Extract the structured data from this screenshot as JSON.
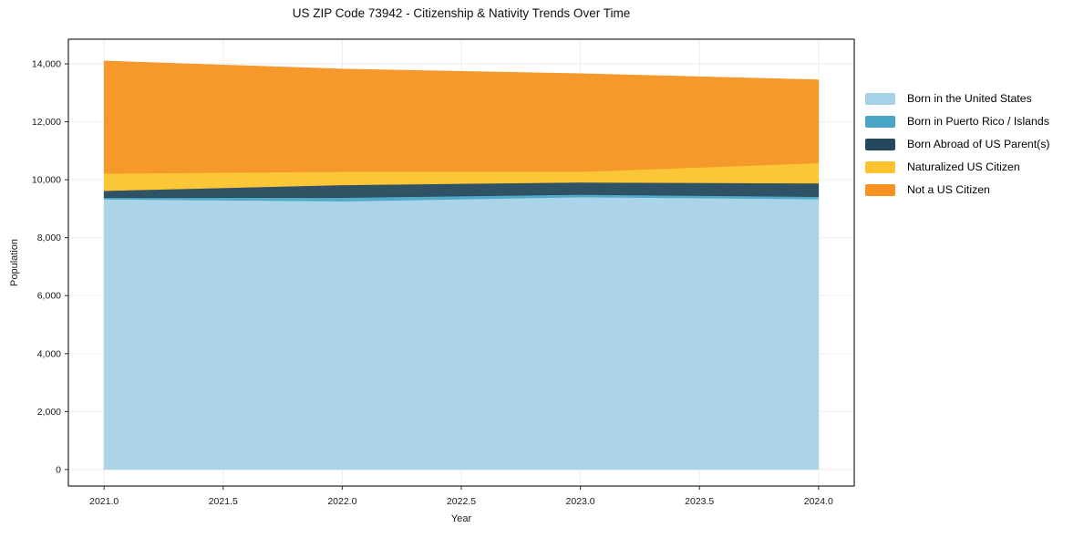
{
  "chart_data": {
    "type": "area",
    "stacked": true,
    "title": "US ZIP Code 73942 - Citizenship & Nativity Trends Over Time",
    "xlabel": "Year",
    "ylabel": "Population",
    "x": [
      2021,
      2022,
      2023,
      2024
    ],
    "series": [
      {
        "name": "Born in the United States",
        "color": "#a6d2e8",
        "values": [
          9330,
          9260,
          9405,
          9335
        ]
      },
      {
        "name": "Born in Puerto Rico / Islands",
        "color": "#49a5c4",
        "values": [
          50,
          125,
          85,
          80
        ]
      },
      {
        "name": "Born Abroad of US Parent(s)",
        "color": "#24495c",
        "values": [
          240,
          435,
          420,
          465
        ]
      },
      {
        "name": "Naturalized US Citizen",
        "color": "#fcc32e",
        "values": [
          600,
          460,
          370,
          700
        ]
      },
      {
        "name": "Not a US Citizen",
        "color": "#f69322",
        "values": [
          3880,
          3540,
          3380,
          2870
        ]
      }
    ],
    "stacked_totals": [
      14100,
      13820,
      13660,
      13450
    ],
    "xlim": [
      2020.85,
      2024.15
    ],
    "ylim": [
      -570,
      14850
    ],
    "xticks": [
      2021.0,
      2021.5,
      2022.0,
      2022.5,
      2023.0,
      2023.5,
      2024.0
    ],
    "xtick_labels": [
      "2021.0",
      "2021.5",
      "2022.0",
      "2022.5",
      "2023.0",
      "2023.5",
      "2024.0"
    ],
    "yticks": [
      0,
      2000,
      4000,
      6000,
      8000,
      10000,
      12000,
      14000
    ],
    "ytick_labels": [
      "0",
      "2,000",
      "4,000",
      "6,000",
      "8,000",
      "10,000",
      "12,000",
      "14,000"
    ],
    "grid": true,
    "legend_position": "right-outside",
    "style": {
      "grid_color": "#ebebeb",
      "spine_color": "#262626",
      "background": "#ffffff",
      "fill_opacity": 0.95
    }
  }
}
